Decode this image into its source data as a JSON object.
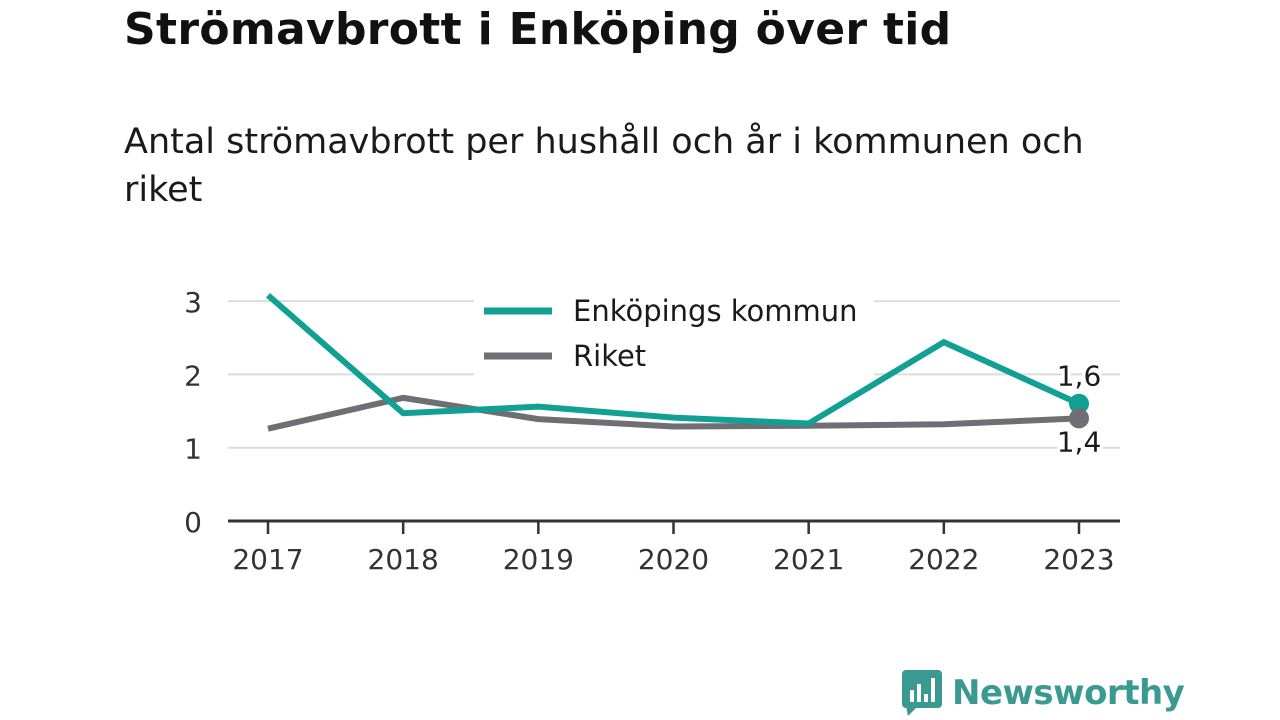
{
  "header": {
    "title": "Strömavbrott i Enköping över tid",
    "subtitle": "Antal strömavbrott per hushåll och år i kommunen och riket"
  },
  "brand": {
    "name": "Newsworthy",
    "color": "#3a9a92",
    "icon": "bar-chart-speech-bubble-icon"
  },
  "chart_data": {
    "type": "line",
    "x": [
      "2017",
      "2018",
      "2019",
      "2020",
      "2021",
      "2022",
      "2023"
    ],
    "ylim": [
      0,
      3
    ],
    "yticks": [
      "0",
      "1",
      "2",
      "3"
    ],
    "grid": true,
    "legend_position": "top-center",
    "series": [
      {
        "name": "Enköpings kommun",
        "color": "#12a094",
        "values": [
          3.08,
          1.47,
          1.56,
          1.41,
          1.33,
          2.44,
          1.6
        ],
        "end_label": "1,6"
      },
      {
        "name": "Riket",
        "color": "#6f6e74",
        "values": [
          1.26,
          1.68,
          1.39,
          1.29,
          1.3,
          1.32,
          1.4
        ],
        "end_label": "1,4"
      }
    ]
  }
}
